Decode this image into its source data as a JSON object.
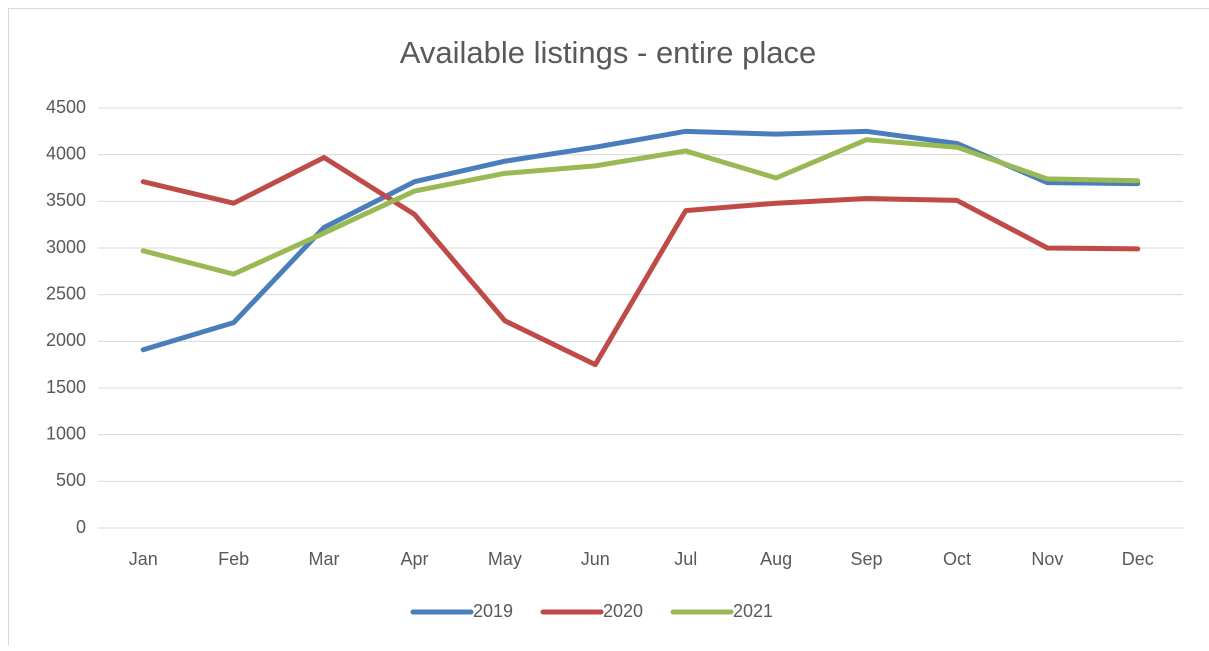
{
  "chart_data": {
    "type": "line",
    "title": "Available listings - entire place",
    "categories": [
      "Jan",
      "Feb",
      "Mar",
      "Apr",
      "May",
      "Jun",
      "Jul",
      "Aug",
      "Sep",
      "Oct",
      "Nov",
      "Dec"
    ],
    "series": [
      {
        "name": "2019",
        "color": "#4a7ebb",
        "values": [
          1910,
          2200,
          3220,
          3710,
          3930,
          4080,
          4250,
          4220,
          4250,
          4120,
          3700,
          3690
        ]
      },
      {
        "name": "2020",
        "color": "#be4b48",
        "values": [
          3710,
          3480,
          3970,
          3360,
          2220,
          1750,
          3400,
          3480,
          3530,
          3510,
          3000,
          2990
        ]
      },
      {
        "name": "2021",
        "color": "#98b954",
        "values": [
          2970,
          2720,
          3160,
          3610,
          3800,
          3880,
          4040,
          3750,
          4160,
          4080,
          3740,
          3720
        ]
      }
    ],
    "ylim": [
      0,
      4500
    ],
    "yticks": [
      0,
      500,
      1000,
      1500,
      2000,
      2500,
      3000,
      3500,
      4000,
      4500
    ],
    "grid": true,
    "legend": "bottom"
  }
}
